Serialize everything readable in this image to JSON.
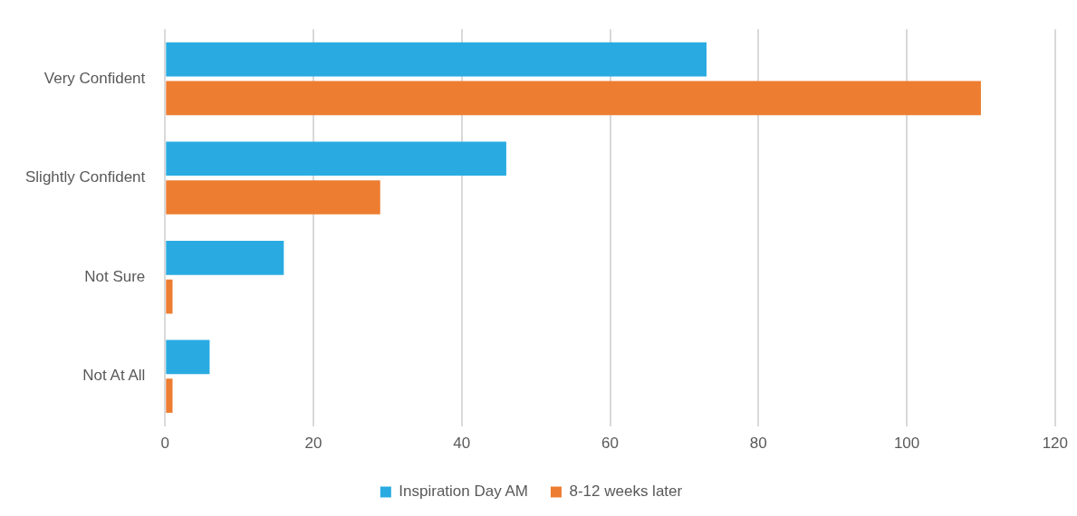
{
  "chart_data": {
    "type": "bar",
    "orientation": "horizontal",
    "categories": [
      "Very Confident",
      "Slightly Confident",
      "Not Sure",
      "Not At All"
    ],
    "series": [
      {
        "name": "Inspiration Day AM",
        "color": "#29abe2",
        "values": [
          73,
          46,
          16,
          6
        ]
      },
      {
        "name": "8-12 weeks later",
        "color": "#ed7d31",
        "values": [
          110,
          29,
          1,
          1
        ]
      }
    ],
    "xlim": [
      0,
      120
    ],
    "xticks": [
      0,
      20,
      40,
      60,
      80,
      100,
      120
    ],
    "grid": "x",
    "legend": "bottom"
  }
}
